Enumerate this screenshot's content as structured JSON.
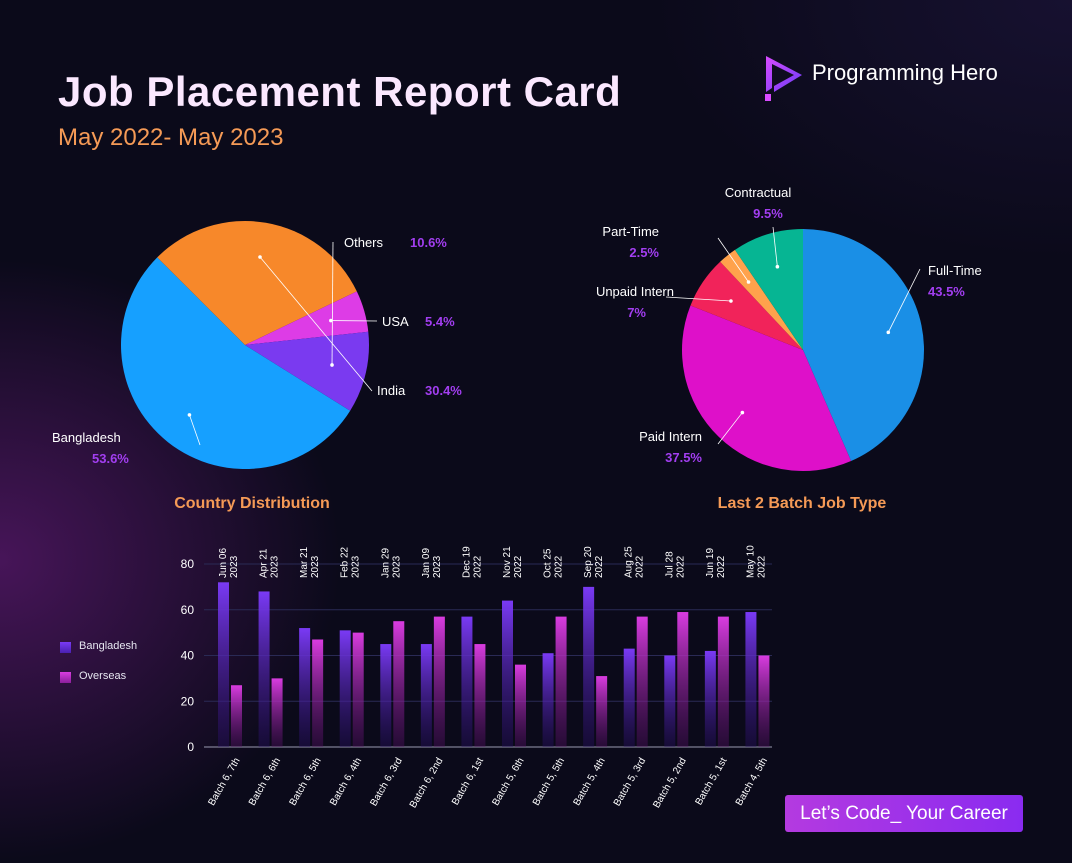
{
  "header": {
    "title": "Job Placement Report Card",
    "subtitle": "May 2022- May 2023",
    "brand_name": "Programming Hero",
    "cta_label": "Let’s Code_ Your Career"
  },
  "colors": {
    "background": "#0b0a1a",
    "accent_orange": "#f59a56",
    "accent_purple": "#a23ef0",
    "bangladesh_bar": "#6a35e8",
    "overseas_bar": "#c030c8"
  },
  "chart_data": [
    {
      "type": "pie",
      "title": "Country Distribution",
      "slices": [
        {
          "label": "Bangladesh",
          "value": 53.6,
          "display": "53.6%",
          "color": "#16a0ff"
        },
        {
          "label": "India",
          "value": 30.4,
          "display": "30.4%",
          "color": "#f7882a"
        },
        {
          "label": "USA",
          "value": 5.4,
          "display": "5.4%",
          "color": "#dd3ce6"
        },
        {
          "label": "Others",
          "value": 10.6,
          "display": "10.6%",
          "color": "#7a3af0"
        }
      ]
    },
    {
      "type": "pie",
      "title": "Last 2 Batch Job Type",
      "slices": [
        {
          "label": "Full-Time",
          "value": 43.5,
          "display": "43.5%",
          "color": "#1a8fe6"
        },
        {
          "label": "Paid Intern",
          "value": 37.5,
          "display": "37.5%",
          "color": "#de10c9"
        },
        {
          "label": "Unpaid Intern",
          "value": 7,
          "display": "7%",
          "color": "#f1235a"
        },
        {
          "label": "Part-Time",
          "value": 2.5,
          "display": "2.5%",
          "color": "#ffa24c"
        },
        {
          "label": "Contractual",
          "value": 9.5,
          "display": "9.5%",
          "color": "#06b593"
        }
      ]
    },
    {
      "type": "bar",
      "categories": [
        "Batch 6, 7th",
        "Batch 6, 6th",
        "Batch 6, 5th",
        "Batch 6, 4th",
        "Batch 6, 3rd",
        "Batch 6, 2nd",
        "Batch 6, 1st",
        "Batch 5, 6th",
        "Batch 5, 5th",
        "Batch 5, 4th",
        "Batch 5, 3rd",
        "Batch 5, 2nd",
        "Batch 5, 1st",
        "Batch 4, 5th"
      ],
      "dates": [
        "Jun 06 2023",
        "Apr 21 2023",
        "Mar 21 2023",
        "Feb 22 2023",
        "Jan 29 2023",
        "Jan 09 2023",
        "Dec 19 2022",
        "Nov 21 2022",
        "Oct 25 2022",
        "Sep 20 2022",
        "Aug 25 2022",
        "Jul 28 2022",
        "Jun 19 2022",
        "May 10 2022"
      ],
      "series": [
        {
          "name": "Bangladesh",
          "values": [
            72,
            68,
            52,
            51,
            45,
            45,
            57,
            64,
            41,
            70,
            43,
            40,
            42,
            59
          ]
        },
        {
          "name": "Overseas",
          "values": [
            27,
            30,
            47,
            50,
            55,
            57,
            45,
            36,
            57,
            31,
            57,
            59,
            57,
            40
          ]
        }
      ],
      "ylim": [
        0,
        80
      ],
      "yticks": [
        0,
        20,
        40,
        60,
        80
      ],
      "grid": true,
      "legend": "left"
    }
  ]
}
